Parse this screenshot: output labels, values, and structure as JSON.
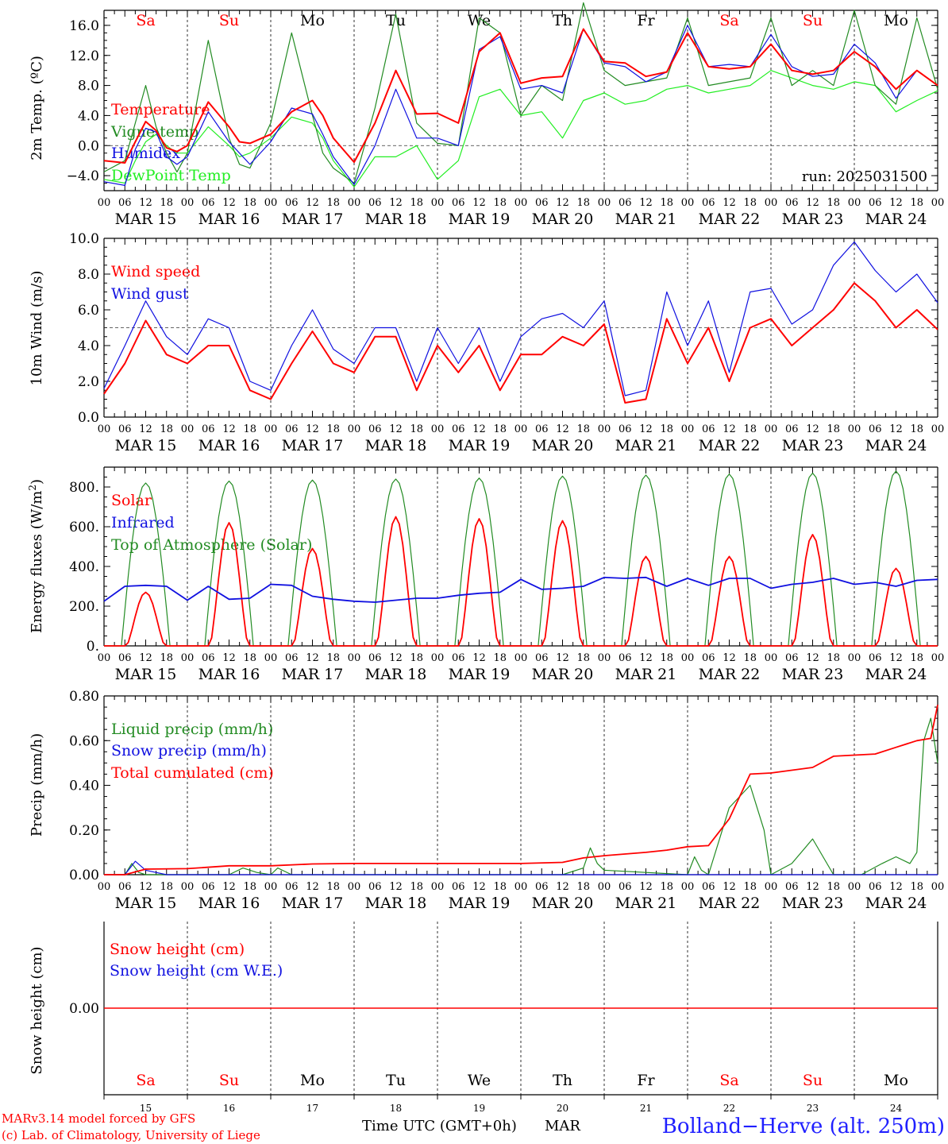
{
  "colors": {
    "red": "#ff0000",
    "darkgreen": "#228b22",
    "blue": "#1010e0",
    "lightgreen": "#22ee22",
    "black": "#000000",
    "stationblue": "#2020ff"
  },
  "days": {
    "names": [
      "Sa",
      "Su",
      "Mo",
      "Tu",
      "We",
      "Th",
      "Fr",
      "Sa",
      "Su",
      "Mo"
    ],
    "weekend": [
      true,
      true,
      false,
      false,
      false,
      false,
      false,
      true,
      true,
      false
    ],
    "dates": [
      "MAR 15",
      "MAR 16",
      "MAR 17",
      "MAR 18",
      "MAR 19",
      "MAR 20",
      "MAR 21",
      "MAR 22",
      "MAR 23",
      "MAR 24"
    ],
    "numbers": [
      "15",
      "16",
      "17",
      "18",
      "19",
      "20",
      "21",
      "22",
      "23",
      "24"
    ],
    "hour_ticks": [
      "00",
      "06",
      "12",
      "18"
    ],
    "final_tick": "00"
  },
  "footer": {
    "model": "MARv3.14 model forced by GFS",
    "lab": "(c) Lab. of Climatology, University of Liege",
    "time_label": "Time UTC (GMT+0h)",
    "month": "MAR",
    "station": "Bolland−Herve (alt. 250m)"
  },
  "chart_data": [
    {
      "type": "line",
      "ylabel": "2m Temp. (ºC)",
      "ylim": [
        -6,
        18
      ],
      "yticks": [
        -4,
        0,
        4,
        8,
        12,
        16
      ],
      "yticklabels": [
        "−4.0",
        "0.0",
        "4.0",
        "8.0",
        "12.0",
        "16.0"
      ],
      "refline": 0,
      "annotation": "run: 2025031500",
      "x_hours_from_mar15_00": [
        0,
        6,
        9,
        12,
        15,
        18,
        21,
        24,
        30,
        36,
        39,
        42,
        48,
        54,
        60,
        63,
        66,
        72,
        78,
        84,
        90,
        96,
        102,
        108,
        114,
        120,
        126,
        132,
        138,
        144,
        150,
        156,
        162,
        168,
        174,
        180,
        186,
        192,
        198,
        204,
        210,
        216,
        222,
        228,
        234,
        240
      ],
      "series": [
        {
          "name": "Temperature",
          "color": "red",
          "values": [
            -2.0,
            -2.3,
            0.5,
            3.2,
            2.0,
            -0.3,
            -0.8,
            0.0,
            5.8,
            2.5,
            0.5,
            0.3,
            1.5,
            4.5,
            6.0,
            4.0,
            1.0,
            -2.2,
            3.0,
            10.0,
            4.2,
            4.3,
            3.0,
            12.5,
            15.0,
            8.3,
            9.0,
            9.2,
            15.5,
            11.2,
            11.0,
            9.2,
            9.8,
            15.0,
            10.5,
            10.2,
            10.5,
            13.5,
            10.0,
            9.5,
            10.0,
            12.5,
            10.5,
            7.5,
            10.0,
            8.0
          ]
        },
        {
          "name": "Vigne temp",
          "color": "darkgreen",
          "values": [
            -3.5,
            -2.0,
            3.0,
            8.0,
            2.5,
            -1.0,
            -3.5,
            -1.0,
            14.0,
            1.0,
            -2.5,
            -3.0,
            3.0,
            15.0,
            4.0,
            -1.0,
            -3.0,
            -5.0,
            5.0,
            17.5,
            3.0,
            0.3,
            0.0,
            17.0,
            15.0,
            4.0,
            8.0,
            6.0,
            19.0,
            10.0,
            8.0,
            8.5,
            9.0,
            17.0,
            8.0,
            8.5,
            9.0,
            17.0,
            8.0,
            10.0,
            8.0,
            18.0,
            8.0,
            5.5,
            17.0,
            7.5
          ]
        },
        {
          "name": "Humidex",
          "color": "blue",
          "values": [
            -4.8,
            -5.3,
            -0.5,
            2.3,
            1.8,
            -1.5,
            -2.5,
            -1.5,
            4.5,
            0.5,
            -1.0,
            -2.5,
            0.5,
            5.0,
            4.2,
            1.5,
            -1.5,
            -5.2,
            0.0,
            7.5,
            1.0,
            1.0,
            0.0,
            12.8,
            14.5,
            7.5,
            8.0,
            7.0,
            15.5,
            11.0,
            10.5,
            8.5,
            9.8,
            16.0,
            10.5,
            10.8,
            10.5,
            14.8,
            10.5,
            9.2,
            9.5,
            13.5,
            11.0,
            6.3,
            10.0,
            8.0
          ]
        },
        {
          "name": "DewPoint Temp",
          "color": "lightgreen",
          "values": [
            -4.5,
            -5.0,
            -2.0,
            0.5,
            1.5,
            0.0,
            -1.0,
            -1.0,
            2.5,
            0.0,
            -1.5,
            -1.0,
            1.0,
            3.8,
            3.0,
            1.0,
            -2.0,
            -5.5,
            -1.5,
            -1.5,
            0.0,
            -4.5,
            -2.0,
            6.5,
            7.5,
            4.0,
            4.5,
            1.0,
            6.0,
            7.0,
            5.5,
            6.0,
            7.5,
            8.0,
            7.0,
            7.5,
            8.0,
            10.0,
            9.0,
            8.0,
            7.5,
            8.5,
            8.0,
            4.5,
            6.0,
            7.3
          ]
        }
      ],
      "legend": [
        "Temperature",
        "Vigne temp",
        "Humidex",
        "DewPoint Temp"
      ]
    },
    {
      "type": "line",
      "ylabel": "10m Wind (m/s)",
      "ylim": [
        0,
        10
      ],
      "yticks": [
        0,
        2,
        4,
        6,
        8,
        10
      ],
      "yticklabels": [
        "0.0",
        "2.0",
        "4.0",
        "6.0",
        "8.0",
        "10.0"
      ],
      "refline": 5,
      "x_hours_from_mar15_00": [
        0,
        6,
        12,
        18,
        24,
        30,
        36,
        42,
        48,
        54,
        60,
        66,
        72,
        78,
        84,
        90,
        96,
        102,
        108,
        114,
        120,
        126,
        132,
        138,
        144,
        150,
        156,
        162,
        168,
        174,
        180,
        186,
        192,
        198,
        204,
        210,
        216,
        222,
        228,
        234,
        240
      ],
      "series": [
        {
          "name": "Wind speed",
          "color": "red",
          "values": [
            1.3,
            3.0,
            5.4,
            3.5,
            3.0,
            4.0,
            4.0,
            1.5,
            1.0,
            3.0,
            4.8,
            3.0,
            2.5,
            4.5,
            4.5,
            1.5,
            4.0,
            2.5,
            4.0,
            1.5,
            3.5,
            3.5,
            4.5,
            4.0,
            5.2,
            0.8,
            1.0,
            5.5,
            3.0,
            5.0,
            2.0,
            5.0,
            5.5,
            4.0,
            5.0,
            6.0,
            7.5,
            6.5,
            5.0,
            6.0,
            4.9
          ]
        },
        {
          "name": "Wind gust",
          "color": "blue",
          "values": [
            1.6,
            4.0,
            6.5,
            4.5,
            3.5,
            5.5,
            5.0,
            2.0,
            1.5,
            4.0,
            6.0,
            3.8,
            3.0,
            5.0,
            5.0,
            2.0,
            5.0,
            3.0,
            5.0,
            2.0,
            4.5,
            5.5,
            5.8,
            5.0,
            6.5,
            1.2,
            1.5,
            7.0,
            4.0,
            6.5,
            2.5,
            7.0,
            7.2,
            5.2,
            6.0,
            8.5,
            9.8,
            8.2,
            7.0,
            8.0,
            6.4
          ]
        }
      ],
      "legend": [
        "Wind speed",
        "Wind gust"
      ]
    },
    {
      "type": "line",
      "ylabel": "Energy fluxes (W/m2)",
      "ylim": [
        0,
        900
      ],
      "yticks": [
        0,
        200,
        400,
        600,
        800
      ],
      "yticklabels": [
        "0.",
        "200.",
        "400.",
        "600.",
        "800."
      ],
      "solar_peaks": [
        270,
        620,
        490,
        650,
        640,
        630,
        450,
        450,
        560,
        390
      ],
      "toa_peaks": [
        820,
        830,
        835,
        840,
        845,
        855,
        860,
        865,
        870,
        880
      ],
      "infrared": {
        "x_hours_from_mar15_00": [
          0,
          6,
          12,
          18,
          24,
          30,
          36,
          42,
          48,
          54,
          60,
          66,
          72,
          78,
          84,
          90,
          96,
          102,
          108,
          114,
          120,
          126,
          132,
          138,
          144,
          150,
          156,
          162,
          168,
          174,
          180,
          186,
          192,
          198,
          204,
          210,
          216,
          222,
          228,
          234,
          240
        ],
        "values": [
          225,
          300,
          305,
          300,
          230,
          300,
          235,
          240,
          310,
          305,
          250,
          235,
          225,
          220,
          230,
          240,
          240,
          255,
          265,
          270,
          335,
          285,
          290,
          300,
          345,
          340,
          345,
          300,
          340,
          305,
          340,
          340,
          290,
          310,
          320,
          340,
          310,
          320,
          300,
          330,
          335
        ]
      },
      "series_names": [
        "Solar",
        "Infrared",
        "Top of Atmosphere (Solar)"
      ],
      "legend": [
        "Solar",
        "Infrared",
        "Top of Atmosphere (Solar)"
      ]
    },
    {
      "type": "line",
      "ylabel": "Precip (mm/h)",
      "ylim": [
        0,
        0.8
      ],
      "yticks": [
        0,
        0.2,
        0.4,
        0.6,
        0.8
      ],
      "yticklabels": [
        "0.00",
        "0.20",
        "0.40",
        "0.60",
        "0.80"
      ],
      "series": [
        {
          "name": "Liquid precip (mm/h)",
          "color": "darkgreen",
          "x_hours_from_mar15_00": [
            0,
            6,
            8,
            10,
            12,
            36,
            40,
            44,
            48,
            50,
            54,
            132,
            138,
            140,
            142,
            144,
            168,
            170,
            172,
            174,
            180,
            186,
            190,
            192,
            198,
            204,
            210,
            212,
            218,
            224,
            228,
            232,
            234,
            236,
            238,
            240
          ],
          "values": [
            0,
            0,
            0.05,
            0.01,
            0,
            0,
            0.03,
            0.01,
            0,
            0.03,
            0,
            0,
            0.03,
            0.12,
            0.05,
            0.02,
            0,
            0.08,
            0.02,
            0,
            0.3,
            0.4,
            0.2,
            0,
            0.05,
            0.16,
            0,
            0,
            0,
            0.05,
            0.08,
            0.05,
            0.1,
            0.6,
            0.7,
            0.5
          ]
        },
        {
          "name": "Snow precip (mm/h)",
          "color": "blue",
          "x_hours_from_mar15_00": [
            0,
            6,
            9,
            12,
            18,
            240
          ],
          "values": [
            0,
            0,
            0.06,
            0.02,
            0,
            0
          ]
        },
        {
          "name": "Total cumulated (cm)",
          "color": "red",
          "x_hours_from_mar15_00": [
            0,
            6,
            12,
            24,
            36,
            48,
            60,
            72,
            120,
            132,
            138,
            144,
            156,
            162,
            168,
            174,
            180,
            186,
            192,
            204,
            210,
            216,
            222,
            228,
            234,
            238,
            240
          ],
          "values": [
            0,
            0,
            0.025,
            0.027,
            0.04,
            0.04,
            0.048,
            0.05,
            0.05,
            0.055,
            0.075,
            0.085,
            0.1,
            0.11,
            0.125,
            0.13,
            0.25,
            0.45,
            0.455,
            0.48,
            0.53,
            0.535,
            0.54,
            0.57,
            0.6,
            0.61,
            0.76
          ]
        }
      ],
      "legend": [
        "Liquid precip (mm/h)",
        "Snow precip (mm/h)",
        "Total cumulated (cm)"
      ]
    },
    {
      "type": "line",
      "ylabel": "Snow height (cm)",
      "yticks": [
        0
      ],
      "yticklabels": [
        "0.00"
      ],
      "series": [
        {
          "name": "Snow height (cm)",
          "color": "red",
          "values": [
            0,
            0
          ]
        },
        {
          "name": "Snow height (cm W.E.)",
          "color": "blue",
          "values": [
            0,
            0
          ]
        }
      ],
      "legend": [
        "Snow height (cm)",
        "Snow height (cm W.E.)"
      ]
    }
  ]
}
